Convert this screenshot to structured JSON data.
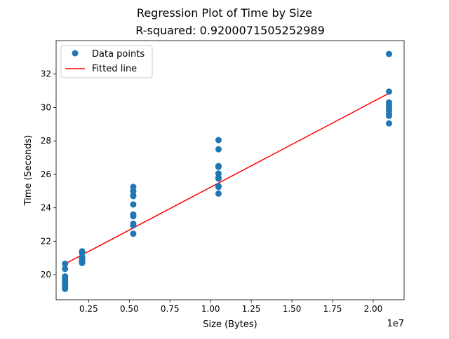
{
  "chart_data": {
    "type": "scatter",
    "title": "Regression Plot of Time by Size",
    "subtitle": "R-squared: 0.9200071505252989",
    "xlabel": "Size (Bytes)",
    "ylabel": "Time (Seconds)",
    "x_offset_text": "1e7",
    "xlim": [
      0.05,
      2.19
    ],
    "ylim": [
      18.5,
      34.0
    ],
    "x_ticks": [
      0.25,
      0.5,
      0.75,
      1.0,
      1.25,
      1.5,
      1.75,
      2.0
    ],
    "x_tick_labels": [
      "0.25",
      "0.50",
      "0.75",
      "1.00",
      "1.25",
      "1.50",
      "1.75",
      "2.00"
    ],
    "y_ticks": [
      20,
      22,
      24,
      26,
      28,
      30,
      32
    ],
    "y_tick_labels": [
      "20",
      "22",
      "24",
      "26",
      "28",
      "30",
      "32"
    ],
    "grid": false,
    "legend_position": "upper-left",
    "colors": {
      "points": "#1f77b4",
      "fit_line": "#ff0000"
    },
    "series": [
      {
        "name": "Data points",
        "kind": "scatter",
        "x": [
          0.1048576,
          0.1048576,
          0.1048576,
          0.1048576,
          0.1048576,
          0.1048576,
          0.1048576,
          0.1048576,
          0.1048576,
          0.1048576,
          0.2097152,
          0.2097152,
          0.2097152,
          0.2097152,
          0.2097152,
          0.2097152,
          0.2097152,
          0.2097152,
          0.524288,
          0.524288,
          0.524288,
          0.524288,
          0.524288,
          0.524288,
          0.524288,
          0.524288,
          0.524288,
          0.524288,
          1.048576,
          1.048576,
          1.048576,
          1.048576,
          1.048576,
          1.048576,
          1.048576,
          1.048576,
          1.048576,
          1.048576,
          2.097152,
          2.097152,
          2.097152,
          2.097152,
          2.097152,
          2.097152,
          2.097152,
          2.097152,
          2.097152
        ],
        "y": [
          20.65,
          20.35,
          19.9,
          19.75,
          19.6,
          19.5,
          19.35,
          19.25,
          19.15,
          19.2,
          21.4,
          21.3,
          21.05,
          20.95,
          20.9,
          20.8,
          20.75,
          20.7,
          25.25,
          25.0,
          24.75,
          24.2,
          23.6,
          23.5,
          23.05,
          22.95,
          22.45,
          24.7,
          28.05,
          27.5,
          26.5,
          26.45,
          26.05,
          25.8,
          25.3,
          25.25,
          24.85,
          25.75,
          33.2,
          30.95,
          30.3,
          30.1,
          29.95,
          29.8,
          29.6,
          29.5,
          29.05
        ]
      },
      {
        "name": "Fitted line",
        "kind": "line",
        "x": [
          0.1048576,
          2.097152
        ],
        "y": [
          20.65,
          30.85
        ]
      }
    ]
  }
}
